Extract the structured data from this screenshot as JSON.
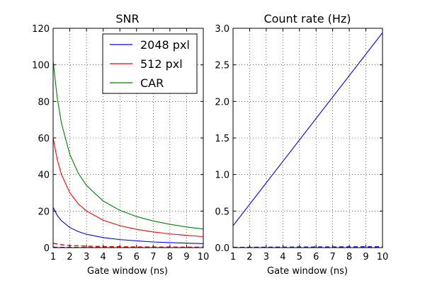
{
  "chart_data": [
    {
      "type": "line",
      "title": "SNR",
      "xlabel": "Gate window (ns)",
      "ylabel": "",
      "xlim": [
        1,
        10
      ],
      "ylim": [
        0,
        120
      ],
      "xticks": [
        1,
        2,
        3,
        4,
        5,
        6,
        7,
        8,
        9,
        10
      ],
      "yticks": [
        0,
        20,
        40,
        60,
        80,
        100,
        120
      ],
      "grid": true,
      "legend": {
        "placement": "top-right"
      },
      "series": [
        {
          "name": "2048 pxl",
          "color": "#0000ff",
          "style": "solid",
          "x": [
            1,
            1.25,
            1.5,
            2,
            2.5,
            3,
            4,
            5,
            6,
            7,
            8,
            9,
            10
          ],
          "y": [
            22,
            17.6,
            14.7,
            11,
            8.8,
            7.3,
            5.5,
            4.4,
            3.7,
            3.1,
            2.75,
            2.45,
            2.2
          ]
        },
        {
          "name": "512 pxl",
          "color": "#ff0000",
          "style": "solid",
          "x": [
            1,
            1.25,
            1.5,
            2,
            2.5,
            3,
            4,
            5,
            6,
            7,
            8,
            9,
            10
          ],
          "y": [
            60,
            48,
            40,
            30,
            24,
            20,
            15,
            12,
            10,
            8.6,
            7.5,
            6.7,
            6
          ]
        },
        {
          "name": "CAR",
          "color": "#008000",
          "style": "solid",
          "x": [
            1,
            1.25,
            1.5,
            2,
            2.5,
            3,
            4,
            5,
            6,
            7,
            8,
            9,
            10
          ],
          "y": [
            102,
            81.6,
            68,
            51,
            40.8,
            34,
            25.5,
            20.4,
            17,
            14.6,
            12.75,
            11.3,
            10.2
          ]
        },
        {
          "color": "#0000ff",
          "style": "dashed",
          "x": [
            1,
            2,
            3,
            4,
            5,
            6,
            7,
            8,
            9,
            10
          ],
          "y": [
            0.2,
            0.1,
            0.07,
            0.05,
            0.04,
            0.035,
            0.03,
            0.025,
            0.022,
            0.02
          ]
        },
        {
          "color": "#ff0000",
          "style": "dashed",
          "x": [
            1,
            1.5,
            2,
            3,
            4,
            5,
            6,
            7,
            8,
            9,
            10
          ],
          "y": [
            2.4,
            1.6,
            1.2,
            0.8,
            0.6,
            0.48,
            0.4,
            0.34,
            0.3,
            0.27,
            0.24
          ]
        }
      ]
    },
    {
      "type": "line",
      "title": "Count rate (Hz)",
      "xlabel": "Gate window (ns)",
      "ylabel": "",
      "xlim": [
        1,
        10
      ],
      "ylim": [
        0,
        3.0
      ],
      "xticks": [
        1,
        2,
        3,
        4,
        5,
        6,
        7,
        8,
        9,
        10
      ],
      "yticks": [
        0.0,
        0.5,
        1.0,
        1.5,
        2.0,
        2.5,
        3.0
      ],
      "ytick_labels": [
        "0.0",
        "0.5",
        "1.0",
        "1.5",
        "2.0",
        "2.5",
        "3.0"
      ],
      "grid": true,
      "series": [
        {
          "color": "#0000ff",
          "style": "solid",
          "x": [
            1,
            10
          ],
          "y": [
            0.3,
            2.94
          ]
        },
        {
          "color": "#0000ff",
          "style": "dashed",
          "x": [
            1,
            10
          ],
          "y": [
            0.004,
            0.012
          ]
        }
      ]
    }
  ]
}
